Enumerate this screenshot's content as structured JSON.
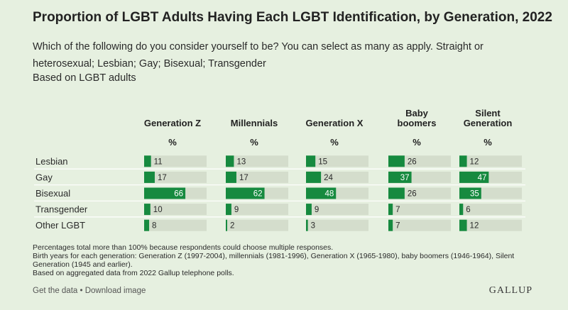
{
  "title": "Proportion of LGBT Adults Having Each LGBT Identification, by Generation, 2022",
  "subtitle": "Which of the following do you consider yourself to be? You can select as many as apply. Straight or heterosexual; Lesbian; Gay; Bisexual; Transgender",
  "base_note": "Based on LGBT adults",
  "notes": [
    "Percentages total more than 100% because respondents could choose multiple responses.",
    "Birth years for each generation: Generation Z (1997-2004), millennials (1981-1996), Generation X (1965-1980), baby boomers (1946-1964), Silent Generation (1945 and earlier).",
    "Based on aggregated data from 2022 Gallup telephone polls."
  ],
  "footer": {
    "links": "Get the data • Download image",
    "logo": "GALLUP"
  },
  "colors": {
    "bar": "#168a3f",
    "track": "#d4ddcc",
    "background": "#e6f0e0",
    "divider": "#ffffff"
  },
  "chart_data": {
    "type": "table",
    "unit_label": "%",
    "categories": [
      "Lesbian",
      "Gay",
      "Bisexual",
      "Transgender",
      "Other LGBT"
    ],
    "xlim": [
      0,
      100
    ],
    "series": [
      {
        "name": "Generation Z",
        "name_lines": [
          "Generation Z"
        ],
        "values": [
          11,
          17,
          66,
          10,
          8
        ]
      },
      {
        "name": "Millennials",
        "name_lines": [
          "Millennials"
        ],
        "values": [
          13,
          17,
          62,
          9,
          2
        ]
      },
      {
        "name": "Generation X",
        "name_lines": [
          "Generation X"
        ],
        "values": [
          15,
          24,
          48,
          9,
          3
        ]
      },
      {
        "name": "Baby boomers",
        "name_lines": [
          "Baby",
          "boomers"
        ],
        "values": [
          26,
          37,
          26,
          7,
          7
        ]
      },
      {
        "name": "Silent Generation",
        "name_lines": [
          "Silent",
          "Generation"
        ],
        "values": [
          12,
          47,
          35,
          6,
          12
        ]
      }
    ]
  }
}
